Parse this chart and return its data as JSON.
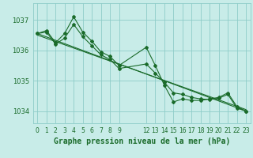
{
  "bg_color": "#c8ece8",
  "grid_color": "#8eccc8",
  "line_color": "#1a6b2a",
  "title": "Graphe pression niveau de la mer (hPa)",
  "title_fontsize": 7.0,
  "xlim": [
    -0.5,
    23.5
  ],
  "ylim": [
    1033.6,
    1037.55
  ],
  "yticks": [
    1034,
    1035,
    1036,
    1037
  ],
  "xticks": [
    0,
    1,
    2,
    3,
    4,
    5,
    6,
    7,
    8,
    9,
    12,
    13,
    14,
    15,
    16,
    17,
    18,
    19,
    20,
    21,
    22,
    23
  ],
  "series": [
    {
      "x": [
        0,
        1,
        2,
        3,
        4,
        5,
        6,
        7,
        8,
        9,
        12,
        13,
        14,
        15,
        16,
        17,
        18,
        19,
        20,
        21,
        22,
        23
      ],
      "y": [
        1036.55,
        1036.65,
        1036.25,
        1036.55,
        1037.1,
        1036.6,
        1036.3,
        1035.95,
        1035.8,
        1035.5,
        1036.1,
        1035.5,
        1034.85,
        1034.3,
        1034.4,
        1034.35,
        1034.35,
        1034.4,
        1034.45,
        1034.6,
        1034.15,
        1034.0
      ]
    },
    {
      "x": [
        0,
        23
      ],
      "y": [
        1036.55,
        1034.0
      ]
    },
    {
      "x": [
        0,
        23
      ],
      "y": [
        1036.5,
        1034.05
      ]
    },
    {
      "x": [
        0,
        1,
        2,
        3,
        4,
        5,
        6,
        7,
        8,
        9,
        12,
        13,
        14,
        15,
        16,
        17,
        18,
        19,
        20,
        21,
        22,
        23
      ],
      "y": [
        1036.55,
        1036.6,
        1036.2,
        1036.4,
        1036.85,
        1036.45,
        1036.15,
        1035.85,
        1035.7,
        1035.4,
        1035.55,
        1035.25,
        1034.95,
        1034.6,
        1034.55,
        1034.45,
        1034.4,
        1034.38,
        1034.42,
        1034.55,
        1034.1,
        1034.0
      ]
    }
  ]
}
